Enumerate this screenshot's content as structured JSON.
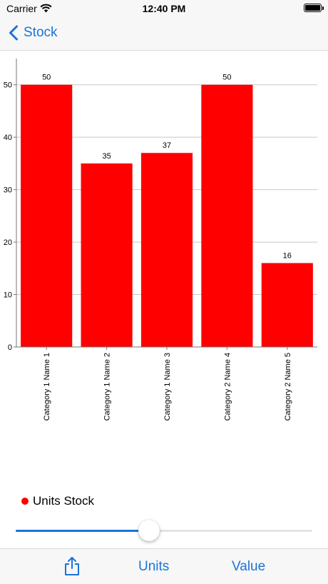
{
  "status_bar": {
    "carrier": "Carrier",
    "time": "12:40 PM"
  },
  "nav": {
    "back_label": "Stock"
  },
  "accent_color": "#1a73d9",
  "chart_data": {
    "type": "bar",
    "categories": [
      "Category 1 Name 1",
      "Category 1 Name 2",
      "Category 1 Name 3",
      "Category 2 Name 4",
      "Category 2 Name 5"
    ],
    "series": [
      {
        "name": "Units Stock",
        "values": [
          50,
          35,
          37,
          50,
          16
        ],
        "color": "#ff0000"
      }
    ],
    "ylim": [
      0,
      55
    ],
    "yticks": [
      0,
      10,
      20,
      30,
      40,
      50
    ],
    "grid": true,
    "legend": "bottom-left",
    "title": "",
    "xlabel": "",
    "ylabel": ""
  },
  "legend": {
    "label": "Units Stock",
    "color": "#ff0000"
  },
  "slider": {
    "value": 0.45
  },
  "toolbar": {
    "units_label": "Units",
    "value_label": "Value"
  }
}
